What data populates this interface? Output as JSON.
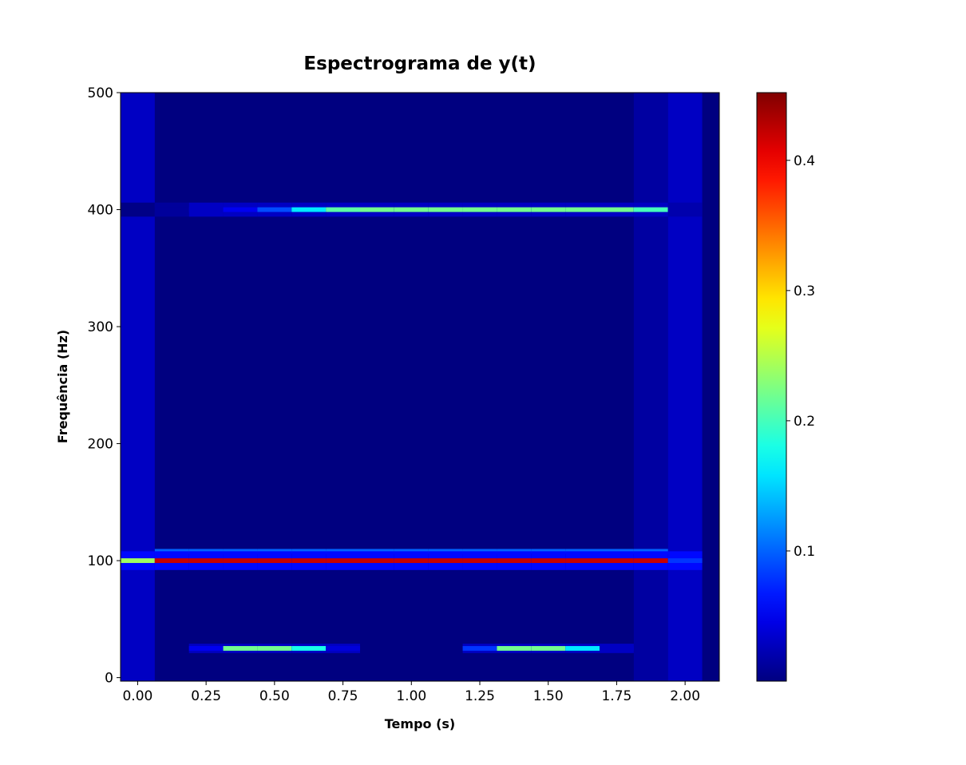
{
  "chart_data": {
    "type": "heatmap",
    "title": "Espectrograma de y(t)",
    "xlabel": "Tempo (s)",
    "ylabel": "Frequência (Hz)",
    "xlim": [
      -0.0625,
      2.125
    ],
    "ylim": [
      -3,
      500
    ],
    "x_ticks": [
      0.0,
      0.25,
      0.5,
      0.75,
      1.0,
      1.25,
      1.5,
      1.75,
      2.0
    ],
    "x_tick_labels": [
      "0.00",
      "0.25",
      "0.50",
      "0.75",
      "1.00",
      "1.25",
      "1.50",
      "1.75",
      "2.00"
    ],
    "y_ticks": [
      0,
      100,
      200,
      300,
      400,
      500
    ],
    "y_tick_labels": [
      "0",
      "100",
      "200",
      "300",
      "400",
      "500"
    ],
    "colormap": "jet",
    "color_range": [
      0.0,
      0.452
    ],
    "colorbar_ticks": [
      0.1,
      0.2,
      0.3,
      0.4
    ],
    "colorbar_tick_labels": [
      "0.1",
      "0.2",
      "0.3",
      "0.4"
    ],
    "time_bins": [
      0.0,
      0.125,
      0.25,
      0.375,
      0.5,
      0.625,
      0.75,
      0.875,
      1.0,
      1.125,
      1.25,
      1.375,
      1.5,
      1.625,
      1.75,
      1.875,
      2.0
    ],
    "time_bin_width": 0.125,
    "frequency_bin_width": 4,
    "background_value": 0.0,
    "tracks": [
      {
        "frequency": 400,
        "values": [
          0.003,
          0.012,
          0.03,
          0.05,
          0.09,
          0.16,
          0.21,
          0.22,
          0.22,
          0.22,
          0.22,
          0.22,
          0.22,
          0.22,
          0.22,
          0.2,
          0.02
        ],
        "side": 0.03,
        "spread": 3
      },
      {
        "frequency": 108,
        "values": [
          0.0,
          0.1,
          0.1,
          0.1,
          0.1,
          0.1,
          0.1,
          0.1,
          0.1,
          0.1,
          0.1,
          0.1,
          0.1,
          0.1,
          0.1,
          0.1,
          0.0
        ],
        "side": 0.0,
        "spread": 0
      },
      {
        "frequency": 100,
        "values": [
          0.24,
          0.42,
          0.42,
          0.42,
          0.42,
          0.42,
          0.42,
          0.42,
          0.42,
          0.42,
          0.42,
          0.42,
          0.42,
          0.42,
          0.42,
          0.42,
          0.08
        ],
        "side": 0.06,
        "spread": 4
      },
      {
        "frequency": 25,
        "values": [
          0.0,
          0.0,
          0.05,
          0.22,
          0.22,
          0.18,
          0.04,
          0.0,
          0.0,
          0.0,
          0.08,
          0.22,
          0.22,
          0.16,
          0.03,
          0.0,
          0.0
        ],
        "side": 0.03,
        "spread": 2
      }
    ],
    "edge_columns": [
      {
        "time": 0.0,
        "level": 0.03
      },
      {
        "time": 1.875,
        "level": 0.015
      },
      {
        "time": 2.0,
        "level": 0.03
      }
    ]
  }
}
